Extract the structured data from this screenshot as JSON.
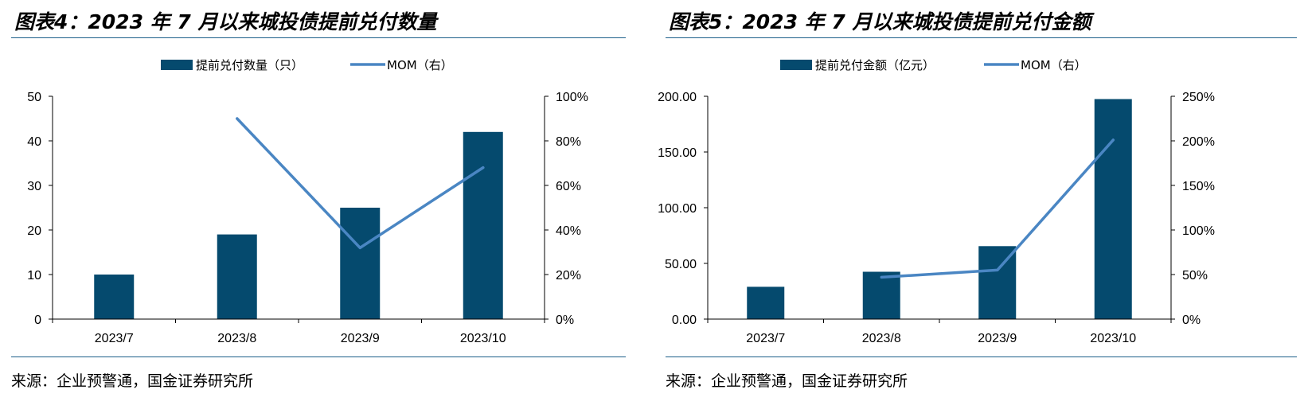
{
  "colors": {
    "bar": "#054a6e",
    "line": "#4a86c3",
    "axis": "#000000",
    "rule": "#1c5f8a"
  },
  "panels": [
    {
      "title": "图表4：2023 年 7 月以来城投债提前兑付数量",
      "source": "来源：企业预警通，国金证券研究所"
    },
    {
      "title": "图表5：2023 年 7 月以来城投债提前兑付金额",
      "source": "来源：企业预警通，国金证券研究所"
    }
  ],
  "chart_data": [
    {
      "type": "bar",
      "categories": [
        "2023/7",
        "2023/8",
        "2023/9",
        "2023/10"
      ],
      "series": [
        {
          "name": "提前兑付数量（只）",
          "type": "bar",
          "axis": "left",
          "values": [
            10,
            19,
            25,
            42
          ]
        },
        {
          "name": "MOM（右）",
          "type": "line",
          "axis": "right",
          "values": [
            null,
            0.9,
            0.32,
            0.68
          ]
        }
      ],
      "ylim": [
        0,
        50
      ],
      "yticks": [
        "0",
        "10",
        "20",
        "30",
        "40",
        "50"
      ],
      "y2lim": [
        0,
        1.0
      ],
      "y2ticks": [
        "0%",
        "20%",
        "40%",
        "60%",
        "80%",
        "100%"
      ],
      "legend": "top",
      "grid": false
    },
    {
      "type": "bar",
      "categories": [
        "2023/7",
        "2023/8",
        "2023/9",
        "2023/10"
      ],
      "series": [
        {
          "name": "提前兑付金额（亿元）",
          "type": "bar",
          "axis": "left",
          "values": [
            29,
            42.5,
            65.5,
            197.5
          ]
        },
        {
          "name": "MOM（右）",
          "type": "line",
          "axis": "right",
          "values": [
            null,
            0.47,
            0.55,
            2.01
          ]
        }
      ],
      "ylim": [
        0,
        200
      ],
      "yticks": [
        "0.00",
        "50.00",
        "100.00",
        "150.00",
        "200.00"
      ],
      "y2lim": [
        0,
        2.5
      ],
      "y2ticks": [
        "0%",
        "50%",
        "100%",
        "150%",
        "200%",
        "250%"
      ],
      "legend": "top",
      "grid": false
    }
  ]
}
